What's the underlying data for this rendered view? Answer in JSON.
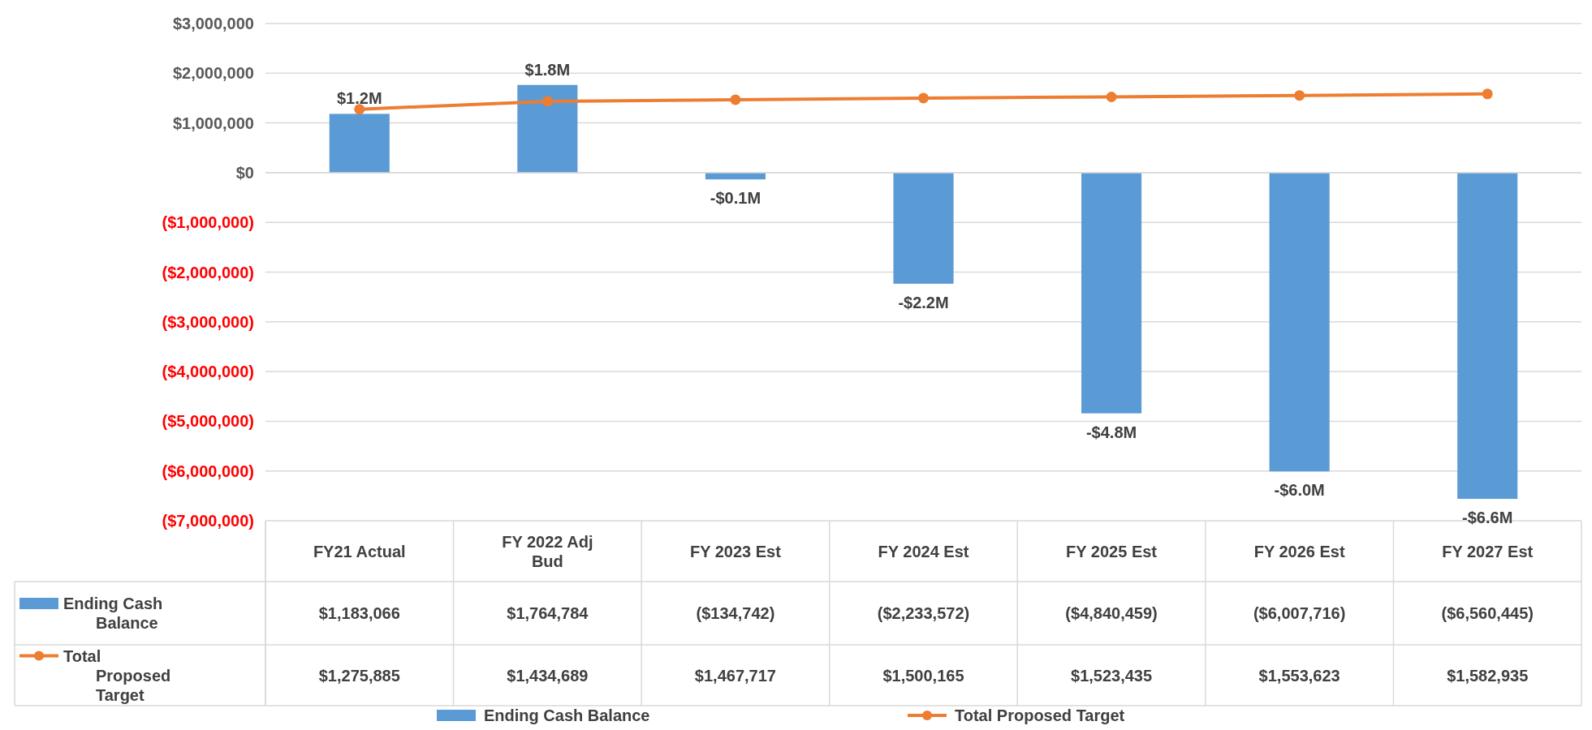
{
  "chart_data": {
    "type": "bar",
    "categories": [
      "FY21 Actual",
      "FY 2022 Adj Bud",
      "FY 2023 Est",
      "FY 2024 Est",
      "FY 2025 Est",
      "FY 2026 Est",
      "FY 2027 Est"
    ],
    "series": [
      {
        "name": "Ending Cash Balance",
        "color": "#5b9bd5",
        "values": [
          1183066,
          1764784,
          -134742,
          -2233572,
          -4840459,
          -6007716,
          -6560445
        ],
        "value_labels": [
          "$1.2M",
          "$1.8M",
          "-$0.1M",
          "-$2.2M",
          "-$4.8M",
          "-$6.0M",
          "-$6.6M"
        ]
      },
      {
        "name": "Total Proposed Target",
        "type": "line",
        "color": "#ed7d31",
        "marker": "circle",
        "values": [
          1275885,
          1434689,
          1467717,
          1500165,
          1523435,
          1553623,
          1582935
        ]
      }
    ],
    "ylim": [
      -7000000,
      3000000
    ],
    "yticks": [
      {
        "value": 3000000,
        "label": "$3,000,000"
      },
      {
        "value": 2000000,
        "label": "$2,000,000"
      },
      {
        "value": 1000000,
        "label": "$1,000,000"
      },
      {
        "value": 0,
        "label": "$0"
      },
      {
        "value": -1000000,
        "label": "($1,000,000)"
      },
      {
        "value": -2000000,
        "label": "($2,000,000)"
      },
      {
        "value": -3000000,
        "label": "($3,000,000)"
      },
      {
        "value": -4000000,
        "label": "($4,000,000)"
      },
      {
        "value": -5000000,
        "label": "($5,000,000)"
      },
      {
        "value": -6000000,
        "label": "($6,000,000)"
      },
      {
        "value": -7000000,
        "label": "($7,000,000)"
      }
    ],
    "grid": "y",
    "legend": "bottom",
    "annotations": [
      "$1,183,066",
      "$1,764,784",
      "($134,742)",
      "($2,233,572)",
      "($4,840,459)",
      "($6,007,716)",
      "($6,560,445)",
      "$1,275,885",
      "$1,434,689",
      "$1,467,717",
      "$1,500,165",
      "$1,523,435",
      "$1,553,623",
      "$1,582,935"
    ]
  }
}
